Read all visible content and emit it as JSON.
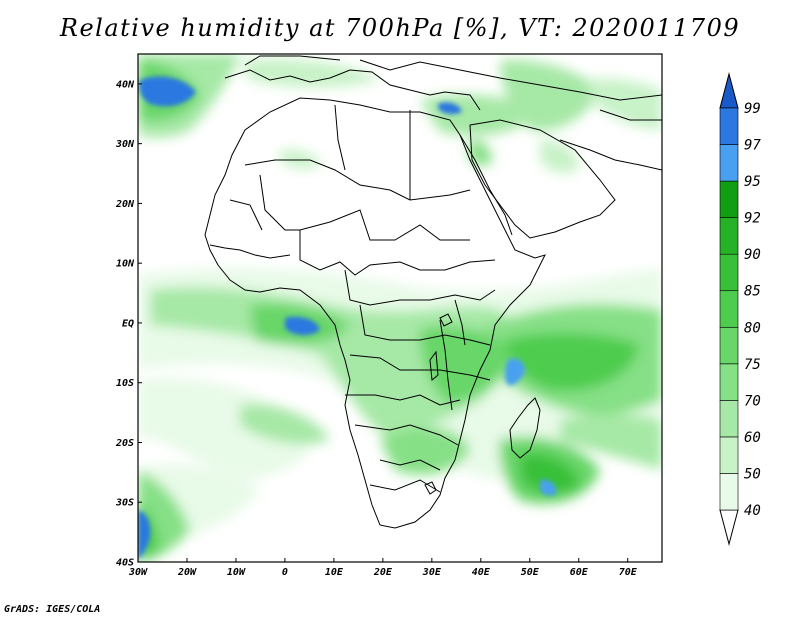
{
  "title": "Relative humidity at 700hPa [%], VT: 2020011709",
  "credit": "GrADS: IGES/COLA",
  "map": {
    "lon_range": [
      -30,
      77
    ],
    "lat_range": [
      -40,
      45
    ],
    "lon_ticks": [
      {
        "value": -30,
        "label": "30W"
      },
      {
        "value": -20,
        "label": "20W"
      },
      {
        "value": -10,
        "label": "10W"
      },
      {
        "value": 0,
        "label": "0"
      },
      {
        "value": 10,
        "label": "10E"
      },
      {
        "value": 20,
        "label": "20E"
      },
      {
        "value": 30,
        "label": "30E"
      },
      {
        "value": 40,
        "label": "40E"
      },
      {
        "value": 50,
        "label": "50E"
      },
      {
        "value": 60,
        "label": "60E"
      },
      {
        "value": 70,
        "label": "70E"
      }
    ],
    "lat_ticks": [
      {
        "value": 40,
        "label": "40N"
      },
      {
        "value": 30,
        "label": "30N"
      },
      {
        "value": 20,
        "label": "20N"
      },
      {
        "value": 10,
        "label": "10N"
      },
      {
        "value": 0,
        "label": "EQ"
      },
      {
        "value": -10,
        "label": "10S"
      },
      {
        "value": -20,
        "label": "20S"
      },
      {
        "value": -30,
        "label": "30S"
      },
      {
        "value": -40,
        "label": "40S"
      }
    ]
  },
  "colorbar": {
    "levels": [
      40,
      50,
      60,
      70,
      75,
      80,
      85,
      90,
      92,
      95,
      97,
      99
    ],
    "colors": [
      "#e8fae8",
      "#c8f2c8",
      "#a6e8a6",
      "#86e086",
      "#68d668",
      "#4ecc4e",
      "#38c038",
      "#26b226",
      "#129e12",
      "#4aa0f0",
      "#2a78e0",
      "#1a5ac8"
    ]
  },
  "colors": {
    "land_outline": "#000000",
    "map_border": "#000000"
  }
}
